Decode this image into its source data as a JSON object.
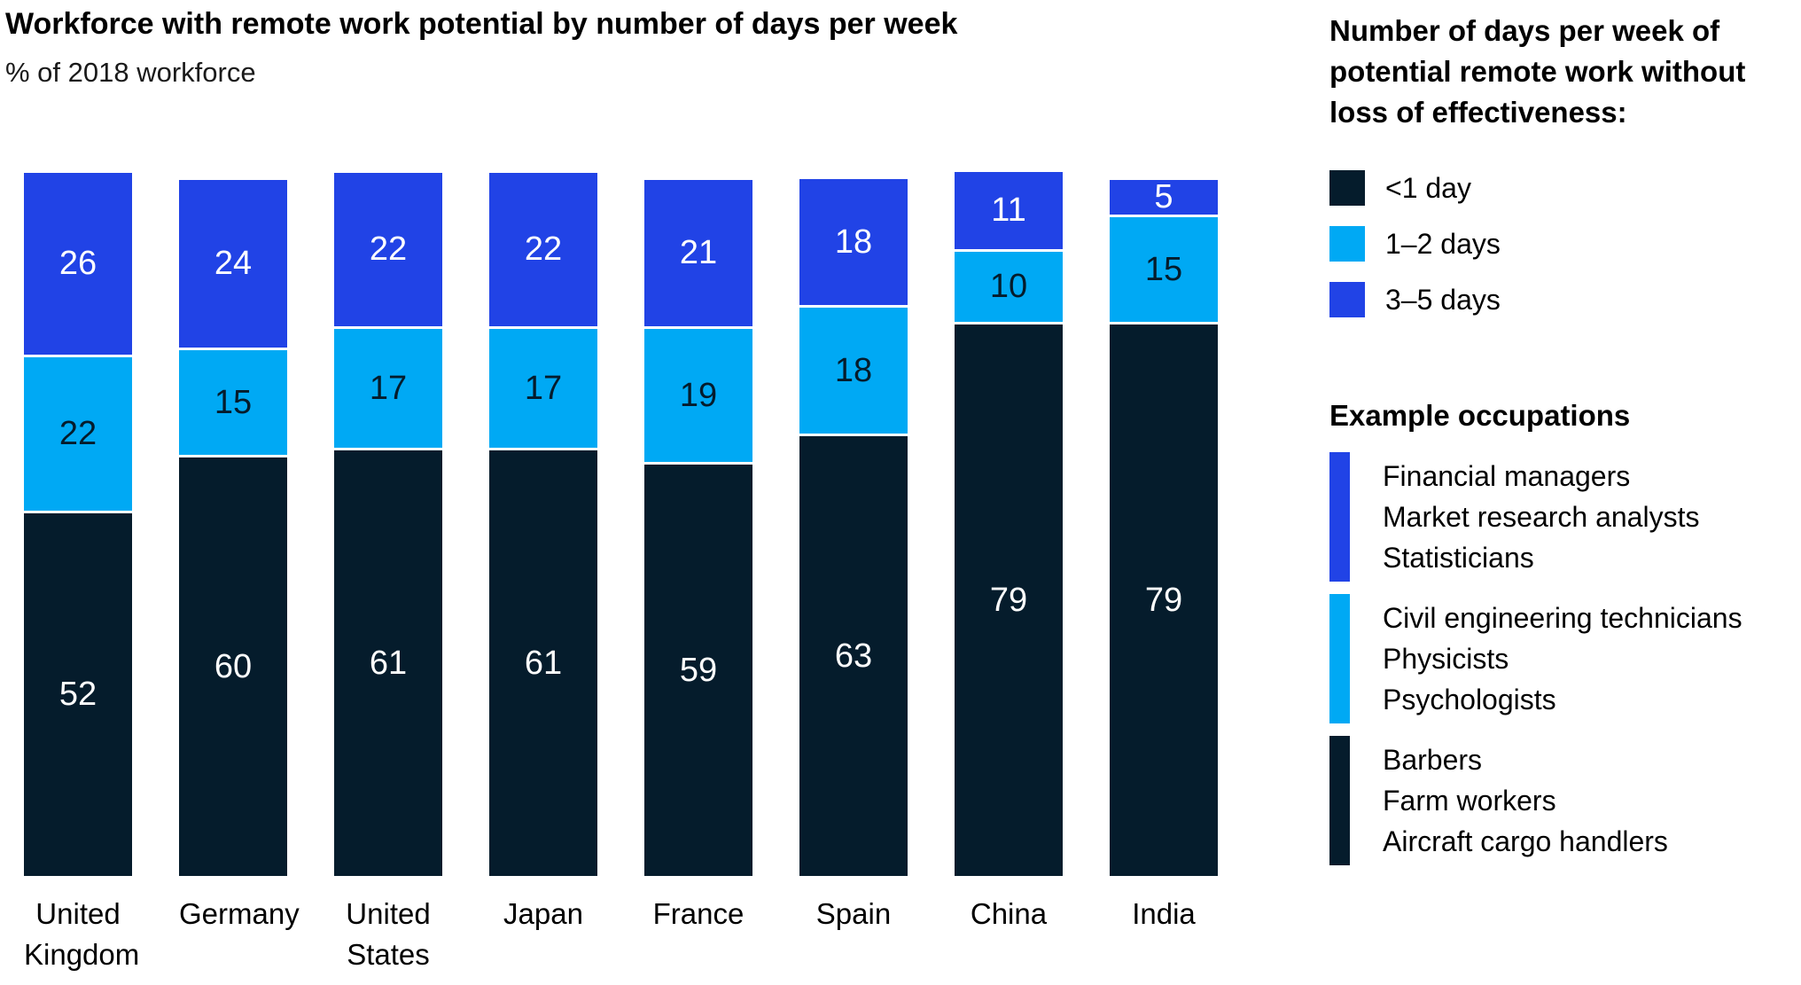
{
  "chart_data": {
    "type": "bar",
    "stacked": true,
    "title": "Workforce with remote work potential by number of days per week",
    "subtitle": "% of 2018 workforce",
    "categories": [
      "United Kingdom",
      "Germany",
      "United States",
      "Japan",
      "France",
      "Spain",
      "China",
      "India"
    ],
    "series": [
      {
        "name": "<1 day",
        "color": "#051C2C",
        "label_color": "#FFFFFF",
        "values": [
          52,
          60,
          61,
          61,
          59,
          63,
          79,
          79
        ]
      },
      {
        "name": "1–2 days",
        "color": "#00A9F4",
        "label_color": "#051C2C",
        "values": [
          22,
          15,
          17,
          17,
          19,
          18,
          10,
          15
        ]
      },
      {
        "name": "3–5 days",
        "color": "#2143E6",
        "label_color": "#FFFFFF",
        "values": [
          26,
          24,
          22,
          22,
          21,
          18,
          11,
          5
        ]
      }
    ],
    "value_unit": "%",
    "ylim": [
      0,
      100
    ],
    "grid": false,
    "axes_hidden": true,
    "legend_position": "right"
  },
  "legend": {
    "title": "Number of days per week of\npotential remote work without\nloss of effectiveness:",
    "items": [
      {
        "label": "<1 day",
        "color": "#051C2C"
      },
      {
        "label": "1–2 days",
        "color": "#00A9F4"
      },
      {
        "label": "3–5 days",
        "color": "#2143E6"
      }
    ]
  },
  "occupations": {
    "heading": "Example occupations",
    "groups": [
      {
        "series": "3–5 days",
        "color": "#2143E6",
        "items": [
          "Financial managers",
          "Market research analysts",
          "Statisticians"
        ]
      },
      {
        "series": "1–2 days",
        "color": "#00A9F4",
        "items": [
          "Civil engineering technicians",
          "Physicists",
          "Psychologists"
        ]
      },
      {
        "series": "<1 day",
        "color": "#051C2C",
        "items": [
          "Barbers",
          "Farm workers",
          "Aircraft cargo handlers"
        ]
      }
    ]
  }
}
